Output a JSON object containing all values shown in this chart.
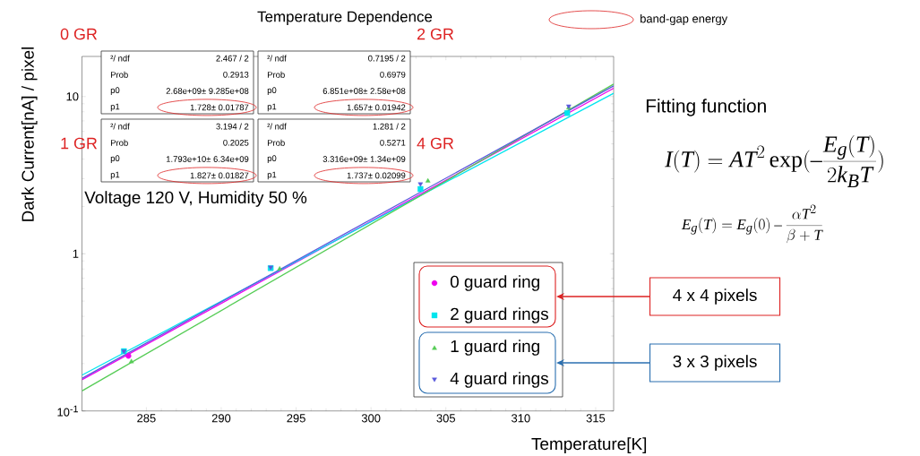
{
  "chart_data": {
    "type": "scatter",
    "title": "Temperature Dependence",
    "xlabel": "Temperature[K]",
    "ylabel": "Dark Current[nA] / pixel",
    "log": "y",
    "legend": "bottom right",
    "xlim": [
      280.7,
      316.2
    ],
    "ylim": [
      0.1,
      18
    ],
    "xticks": [
      285,
      290,
      295,
      300,
      305,
      310,
      315
    ],
    "yticks": [
      {
        "value": 0.1,
        "label": "10$^{-1}$"
      },
      1,
      10
    ],
    "series": [
      {
        "name": "0 guard ring",
        "color": "#ee00ee",
        "marker": "circle",
        "x": [
          283.8
        ],
        "values": [
          0.224
        ]
      },
      {
        "name": "2 guard rings",
        "color": "#00e5ee",
        "marker": "square",
        "x": [
          283.5,
          293.3,
          303.3,
          313.1
        ],
        "values": [
          0.24,
          0.81,
          2.58,
          7.85
        ]
      },
      {
        "name": "1 guard ring",
        "color": "#55cc55",
        "marker": "triangle",
        "x": [
          284.0,
          293.9,
          303.8,
          313.2
        ],
        "values": [
          0.206,
          0.8,
          2.9,
          8.5
        ]
      },
      {
        "name": "4 guard rings",
        "color": "#5a5adc",
        "marker": "triangle-down",
        "x": [
          283.5,
          293.3,
          303.3,
          313.2
        ],
        "values": [
          0.24,
          0.82,
          2.78,
          8.7
        ]
      },
      {
        "type": "line",
        "color": "#ee00ee",
        "x": [
          280.7,
          316.2
        ],
        "values": [
          0.158,
          11.3
        ]
      },
      {
        "type": "line",
        "color": "#00e5ee",
        "x": [
          280.7,
          316.2
        ],
        "values": [
          0.169,
          10.5
        ]
      },
      {
        "type": "line",
        "color": "#55cc55",
        "x": [
          280.7,
          316.2
        ],
        "values": [
          0.134,
          12.0
        ]
      },
      {
        "type": "line",
        "color": "#5a5adc",
        "x": [
          280.7,
          316.2
        ],
        "values": [
          0.161,
          11.7
        ]
      }
    ],
    "annotations": [
      "0 GR",
      "2 GR",
      "1 GR",
      "4 GR",
      "²/ ndf",
      "2.467 / 2",
      "Prob",
      "0.2913",
      "p0",
      "2.68e+09± 9.285e+08",
      "p1",
      "1.728± 0.01787",
      "²/ ndf",
      "0.7195 / 2",
      "Prob",
      "0.6979",
      "p0",
      "6.851e+08± 2.58e+08",
      "p1",
      "1.657± 0.01942",
      "²/ ndf",
      "3.194 / 2",
      "Prob",
      "0.2025",
      "p0",
      "1.793e+10± 6.34e+09",
      "p1",
      "1.827± 0.01827",
      "²/ ndf",
      "1.281 / 2",
      "Prob",
      "0.5271",
      "p0",
      "3.316e+09± 1.34e+09",
      "p1",
      "1.737± 0.02099",
      "Voltage 120 V, Humidity 50 %",
      "band-gap energy",
      "Fitting function",
      "I(T)=AT^2\\exp(-\\frac{E_g(T)}{2k_BT})",
      "E_g(T)=E_g(0)-\\frac{\\alpha T^2}{\\beta+T}",
      "4 x 4 pixels",
      "3 x 3 pixels"
    ]
  }
}
